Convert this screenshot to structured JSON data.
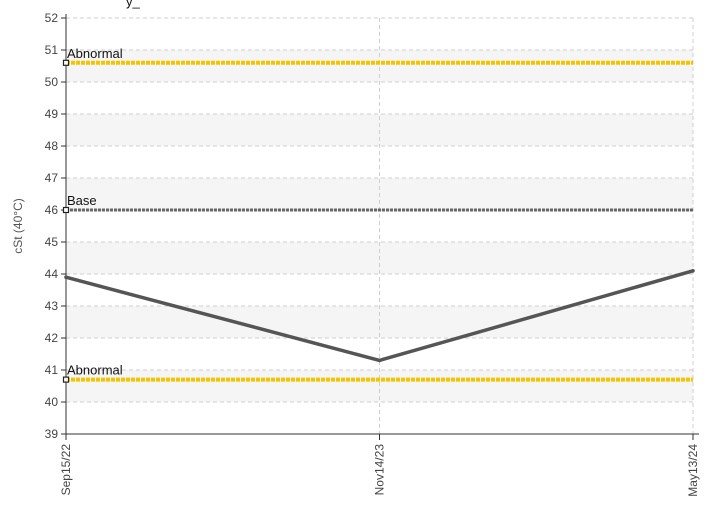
{
  "chart_data": {
    "type": "line",
    "title_fragment": "y_",
    "ylabel": "cSt (40°C)",
    "xlabel": "",
    "ylim": [
      39,
      52
    ],
    "yticks": [
      39,
      40,
      41,
      42,
      43,
      44,
      45,
      46,
      47,
      48,
      49,
      50,
      51,
      52
    ],
    "x": [
      "Sep15/22",
      "Nov14/23",
      "May13/24"
    ],
    "series": [
      {
        "values": [
          43.9,
          41.3,
          44.1
        ],
        "color": "#555555"
      }
    ],
    "reference_lines": [
      {
        "label": "Abnormal",
        "value": 50.6,
        "color": "#f5c400"
      },
      {
        "label": "Base",
        "value": 46.0,
        "color": "#666666"
      },
      {
        "label": "Abnormal",
        "value": 40.7,
        "color": "#f5c400"
      }
    ],
    "grid": true,
    "legend": "none"
  }
}
